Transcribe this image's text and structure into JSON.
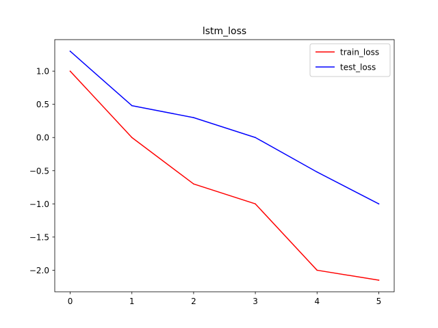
{
  "chart_data": {
    "type": "line",
    "title": "lstm_loss",
    "xlabel": "",
    "ylabel": "",
    "x": [
      0,
      1,
      2,
      3,
      4,
      5
    ],
    "xlim": [
      -0.25,
      5.25
    ],
    "ylim": [
      -2.325,
      1.475
    ],
    "xticks": [
      0,
      1,
      2,
      3,
      4,
      5
    ],
    "xtick_labels": [
      "0",
      "1",
      "2",
      "3",
      "4",
      "5"
    ],
    "yticks": [
      1.0,
      0.5,
      0.0,
      -0.5,
      -1.0,
      -1.5,
      -2.0
    ],
    "ytick_labels": [
      "1.0",
      "0.5",
      "0.0",
      "−0.5",
      "−1.0",
      "−1.5",
      "−2.0"
    ],
    "grid": false,
    "legend_position": "top-right",
    "series": [
      {
        "name": "train_loss",
        "color": "#ff0000",
        "values": [
          1.0,
          0.0,
          -0.7,
          -1.0,
          -2.0,
          -2.15
        ]
      },
      {
        "name": "test_loss",
        "color": "#0000ff",
        "values": [
          1.3,
          0.48,
          0.3,
          0.0,
          -0.52,
          -1.0
        ]
      }
    ]
  }
}
